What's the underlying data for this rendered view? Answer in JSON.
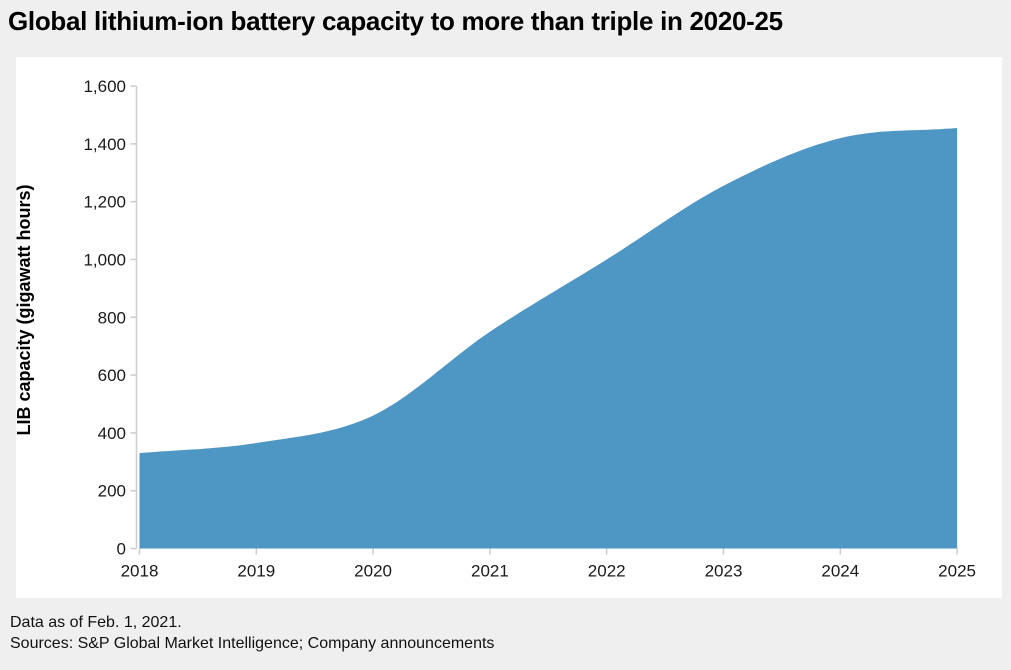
{
  "page": {
    "background_color": "#efefef",
    "panel_color": "#ffffff"
  },
  "chart_data": {
    "type": "area",
    "title": "Global lithium-ion battery capacity to more than triple in 2020-25",
    "categories": [
      "2018",
      "2019",
      "2020",
      "2021",
      "2022",
      "2023",
      "2024",
      "2025"
    ],
    "values": [
      330,
      365,
      460,
      750,
      1000,
      1255,
      1420,
      1455
    ],
    "xlabel": "",
    "ylabel": "LIB capacity (gigawatt hours)",
    "ylim": [
      0,
      1600
    ],
    "ytick_step": 200,
    "grid": false,
    "legend": false,
    "area_color": "#4e96c3",
    "axis_color": "#cdcdcd",
    "tick_label_color": "#1a1a1a",
    "ylabel_color": "#000000"
  },
  "footer": {
    "line1": "Data as of Feb. 1, 2021.",
    "line2": "Sources: S&P Global Market Intelligence; Company announcements"
  }
}
